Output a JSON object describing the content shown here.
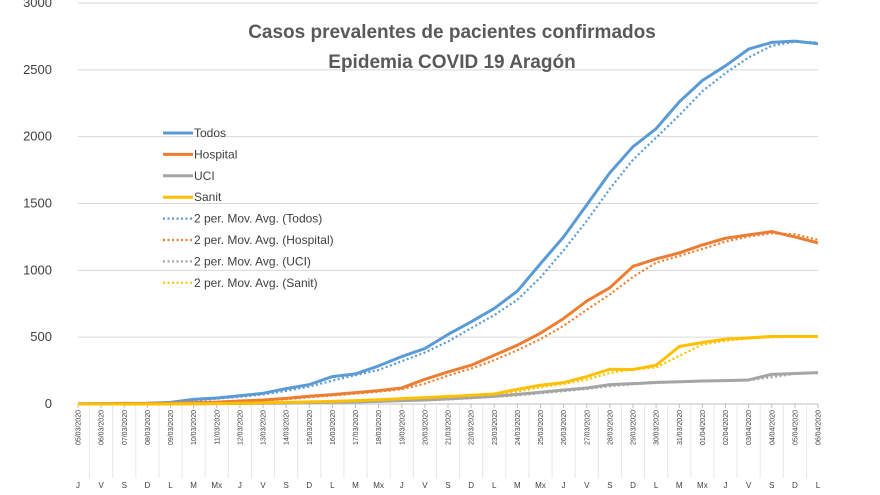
{
  "chart_data": {
    "type": "line",
    "title": "Casos prevalentes de pacientes confirmados",
    "subtitle": "Epidemia COVID 19 Aragón",
    "ylim": [
      0,
      3000
    ],
    "yticks": [
      0,
      500,
      1000,
      1500,
      2000,
      2500,
      3000
    ],
    "grid": true,
    "legend_position": "left",
    "x": [
      "05/03/2020",
      "06/03/2020",
      "07/03/2020",
      "08/03/2020",
      "09/03/2020",
      "10/03/2020",
      "11/03/2020",
      "12/03/2020",
      "13/03/2020",
      "14/03/2020",
      "15/03/2020",
      "16/03/2020",
      "17/03/2020",
      "18/03/2020",
      "19/03/2020",
      "20/03/2020",
      "21/03/2020",
      "22/03/2020",
      "23/03/2020",
      "24/03/2020",
      "25/03/2020",
      "26/03/2020",
      "27/03/2020",
      "28/03/2020",
      "29/03/2020",
      "30/03/2020",
      "31/03/2020",
      "01/04/2020",
      "02/04/2020",
      "03/04/2020",
      "04/04/2020",
      "05/04/2020",
      "06/04/2020"
    ],
    "days": [
      "J",
      "V",
      "S",
      "D",
      "L",
      "M",
      "Mx",
      "J",
      "V",
      "S",
      "D",
      "L",
      "M",
      "Mx",
      "J",
      "V",
      "S",
      "D",
      "L",
      "M",
      "Mx",
      "J",
      "V",
      "S",
      "D",
      "L",
      "M",
      "Mx",
      "J",
      "V",
      "S",
      "D",
      "L"
    ],
    "series": [
      {
        "name": "Todos",
        "color": "#5B9BD5",
        "values": [
          2,
          3,
          5,
          6,
          12,
          35,
          45,
          62,
          80,
          115,
          145,
          205,
          225,
          285,
          355,
          415,
          520,
          615,
          715,
          845,
          1050,
          1250,
          1490,
          1730,
          1925,
          2060,
          2260,
          2420,
          2530,
          2655,
          2705,
          2715,
          2695
        ]
      },
      {
        "name": "Hospital",
        "color": "#ED7D31",
        "values": [
          1,
          2,
          3,
          4,
          6,
          10,
          14,
          22,
          30,
          42,
          58,
          70,
          85,
          100,
          120,
          185,
          240,
          290,
          365,
          440,
          530,
          640,
          770,
          870,
          1030,
          1085,
          1130,
          1190,
          1240,
          1265,
          1290,
          1250,
          1205
        ]
      },
      {
        "name": "UCI",
        "color": "#A5A5A5",
        "values": [
          0,
          0,
          0,
          0,
          1,
          2,
          3,
          4,
          5,
          7,
          10,
          13,
          16,
          20,
          25,
          30,
          38,
          48,
          58,
          72,
          88,
          105,
          120,
          145,
          152,
          162,
          166,
          172,
          175,
          180,
          222,
          228,
          235
        ]
      },
      {
        "name": "Sanit",
        "color": "#FFC000",
        "values": [
          0,
          0,
          0,
          0,
          1,
          2,
          4,
          6,
          8,
          12,
          16,
          20,
          25,
          32,
          40,
          48,
          56,
          65,
          75,
          110,
          140,
          160,
          205,
          260,
          258,
          290,
          430,
          460,
          485,
          495,
          505,
          505,
          505
        ]
      }
    ],
    "moving_average": {
      "period": 2,
      "legend": [
        "2 per. Mov. Avg. (Todos)",
        "2 per. Mov. Avg. (Hospital)",
        "2 per. Mov. Avg. (UCI)",
        "2 per. Mov. Avg. (Sanit)"
      ]
    }
  }
}
